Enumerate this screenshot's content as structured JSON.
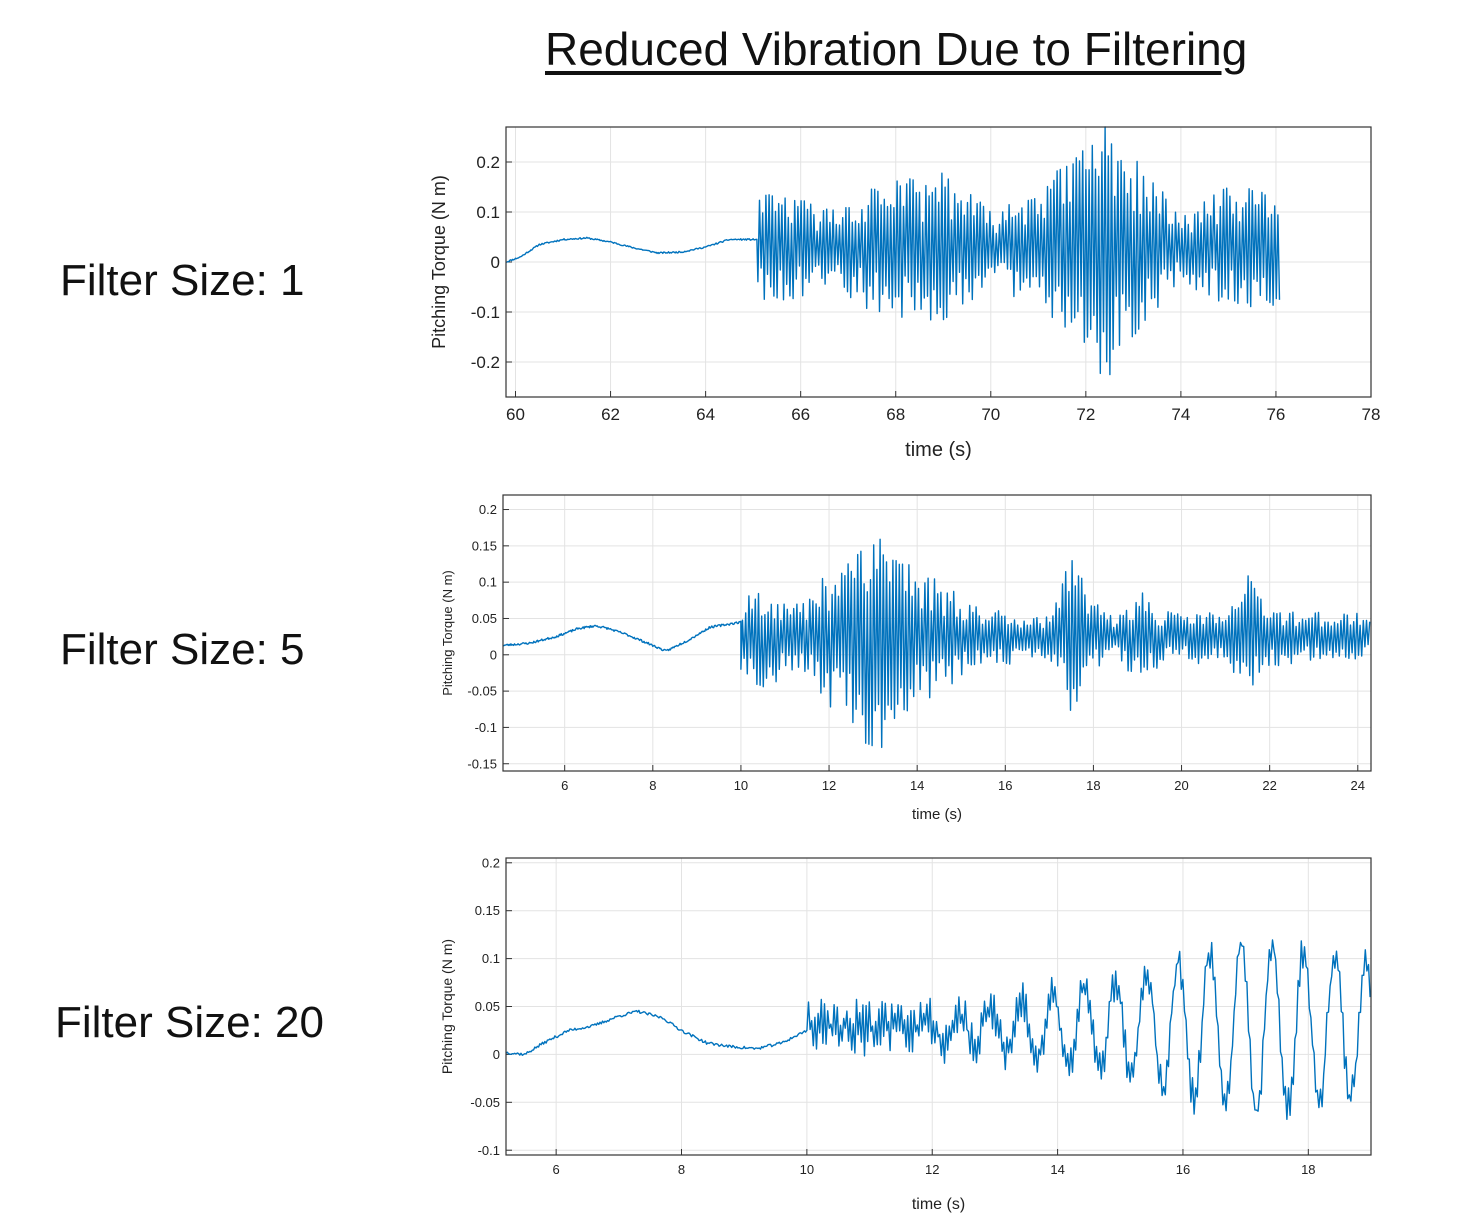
{
  "title": "Reduced Vibration Due to Filtering",
  "accent_color": "#0072BD",
  "rows": [
    {
      "label": "Filter Size: 1"
    },
    {
      "label": "Filter Size: 5"
    },
    {
      "label": "Filter Size: 20"
    }
  ],
  "chart_data": [
    {
      "type": "line",
      "title": "",
      "xlabel": "time (s)",
      "ylabel": "Pitching Torque (N m)",
      "xlim": [
        59.8,
        78
      ],
      "ylim": [
        -0.27,
        0.27
      ],
      "xticks": [
        60,
        62,
        64,
        66,
        68,
        70,
        72,
        74,
        76,
        78
      ],
      "xtick_labels": [
        "60",
        "62",
        "64",
        "66",
        "68",
        "70",
        "72",
        "74",
        "76",
        "78"
      ],
      "yticks": [
        0.2,
        0.1,
        0,
        -0.1,
        -0.2
      ],
      "ytick_labels": [
        "0.2",
        "0.1",
        "0",
        "-0.1",
        "-0.2"
      ],
      "grid": true,
      "series": [
        {
          "name": "Pitching Torque",
          "smooth": [
            [
              59.8,
              0.0
            ],
            [
              60.1,
              0.01
            ],
            [
              60.5,
              0.035
            ],
            [
              61.0,
              0.045
            ],
            [
              61.5,
              0.048
            ],
            [
              62.0,
              0.04
            ],
            [
              62.5,
              0.028
            ],
            [
              63.0,
              0.018
            ],
            [
              63.5,
              0.02
            ],
            [
              64.0,
              0.03
            ],
            [
              64.5,
              0.045
            ],
            [
              65.1,
              0.045
            ]
          ],
          "vib_start": 65.1,
          "vib_end": 76.1,
          "center": 0.03,
          "envelope": [
            [
              65.1,
              0.1
            ],
            [
              65.6,
              0.12
            ],
            [
              66.0,
              0.1
            ],
            [
              66.5,
              0.08
            ],
            [
              67.0,
              0.1
            ],
            [
              67.5,
              0.13
            ],
            [
              68.0,
              0.16
            ],
            [
              68.5,
              0.13
            ],
            [
              69.0,
              0.17
            ],
            [
              69.5,
              0.12
            ],
            [
              70.0,
              0.07
            ],
            [
              70.5,
              0.1
            ],
            [
              71.0,
              0.15
            ],
            [
              71.5,
              0.16
            ],
            [
              72.0,
              0.24
            ],
            [
              72.3,
              0.26
            ],
            [
              72.7,
              0.27
            ],
            [
              73.0,
              0.18
            ],
            [
              73.5,
              0.13
            ],
            [
              74.0,
              0.06
            ],
            [
              74.5,
              0.1
            ],
            [
              75.0,
              0.12
            ],
            [
              75.5,
              0.12
            ],
            [
              76.1,
              0.12
            ]
          ],
          "seed": 11
        }
      ]
    },
    {
      "type": "line",
      "title": "",
      "xlabel": "time (s)",
      "ylabel": "Pitching Torque (N m)",
      "xlim": [
        4.6,
        24.3
      ],
      "ylim": [
        -0.16,
        0.22
      ],
      "xticks": [
        6,
        8,
        10,
        12,
        14,
        16,
        18,
        20,
        22,
        24
      ],
      "xtick_labels": [
        "6",
        "8",
        "10",
        "12",
        "14",
        "16",
        "18",
        "20",
        "22",
        "24"
      ],
      "yticks": [
        0.2,
        0.15,
        0.1,
        0.05,
        0,
        -0.05,
        -0.1,
        -0.15
      ],
      "ytick_labels": [
        "0.2",
        "0.15",
        "0.1",
        "0.05",
        "0",
        "-0.05",
        "-0.1",
        "-0.15"
      ],
      "grid": true,
      "series": [
        {
          "name": "Pitching Torque",
          "smooth": [
            [
              4.6,
              0.013
            ],
            [
              5.2,
              0.016
            ],
            [
              5.8,
              0.025
            ],
            [
              6.3,
              0.036
            ],
            [
              6.7,
              0.04
            ],
            [
              7.0,
              0.036
            ],
            [
              7.4,
              0.028
            ],
            [
              7.8,
              0.018
            ],
            [
              8.3,
              0.005
            ],
            [
              8.8,
              0.02
            ],
            [
              9.3,
              0.038
            ],
            [
              10.0,
              0.045
            ]
          ],
          "vib_start": 10.0,
          "vib_end": 24.3,
          "center": 0.025,
          "envelope": [
            [
              10.0,
              0.06
            ],
            [
              10.5,
              0.08
            ],
            [
              11.0,
              0.05
            ],
            [
              11.5,
              0.05
            ],
            [
              12.0,
              0.1
            ],
            [
              12.5,
              0.14
            ],
            [
              13.0,
              0.17
            ],
            [
              13.5,
              0.14
            ],
            [
              14.0,
              0.1
            ],
            [
              14.5,
              0.08
            ],
            [
              15.0,
              0.06
            ],
            [
              15.5,
              0.04
            ],
            [
              16.0,
              0.04
            ],
            [
              16.5,
              0.03
            ],
            [
              17.0,
              0.03
            ],
            [
              17.5,
              0.11
            ],
            [
              18.0,
              0.05
            ],
            [
              18.5,
              0.03
            ],
            [
              19.0,
              0.07
            ],
            [
              19.5,
              0.04
            ],
            [
              20.0,
              0.03
            ],
            [
              20.5,
              0.04
            ],
            [
              21.0,
              0.03
            ],
            [
              21.5,
              0.09
            ],
            [
              22.0,
              0.04
            ],
            [
              22.5,
              0.04
            ],
            [
              23.0,
              0.035
            ],
            [
              23.5,
              0.035
            ],
            [
              24.3,
              0.03
            ]
          ],
          "seed": 23
        }
      ]
    },
    {
      "type": "line",
      "title": "",
      "xlabel": "time (s)",
      "ylabel": "Pitching Torque (N m)",
      "xlim": [
        5.2,
        19.0
      ],
      "ylim": [
        -0.105,
        0.205
      ],
      "xticks": [
        6,
        8,
        10,
        12,
        14,
        16,
        18
      ],
      "xtick_labels": [
        "6",
        "8",
        "10",
        "12",
        "14",
        "16",
        "18"
      ],
      "yticks": [
        0.2,
        0.15,
        0.1,
        0.05,
        0,
        -0.05,
        -0.1
      ],
      "ytick_labels": [
        "0.2",
        "0.15",
        "0.1",
        "0.05",
        "0",
        "-0.05",
        "-0.1"
      ],
      "grid": true,
      "series": [
        {
          "name": "Pitching Torque",
          "smooth": [
            [
              5.2,
              0.002
            ],
            [
              5.5,
              0.0
            ],
            [
              5.8,
              0.012
            ],
            [
              6.2,
              0.025
            ],
            [
              6.6,
              0.03
            ],
            [
              7.0,
              0.04
            ],
            [
              7.3,
              0.045
            ],
            [
              7.7,
              0.038
            ],
            [
              8.0,
              0.025
            ],
            [
              8.4,
              0.012
            ],
            [
              8.8,
              0.008
            ],
            [
              9.2,
              0.006
            ],
            [
              9.6,
              0.012
            ],
            [
              10.0,
              0.025
            ]
          ],
          "vib_start": 10.0,
          "vib_end": 19.0,
          "center": 0.028,
          "osc_start": 11.8,
          "osc_period": 0.5,
          "osc_amp": [
            [
              11.8,
              0.01
            ],
            [
              13.0,
              0.02
            ],
            [
              14.0,
              0.035
            ],
            [
              15.0,
              0.05
            ],
            [
              16.0,
              0.07
            ],
            [
              17.0,
              0.09
            ],
            [
              18.0,
              0.08
            ],
            [
              19.0,
              0.07
            ]
          ],
          "noise_amp": [
            [
              10.0,
              0.03
            ],
            [
              11.0,
              0.03
            ],
            [
              12.0,
              0.025
            ],
            [
              14.0,
              0.02
            ],
            [
              16.0,
              0.02
            ],
            [
              19.0,
              0.02
            ]
          ],
          "seed": 37
        }
      ]
    }
  ]
}
